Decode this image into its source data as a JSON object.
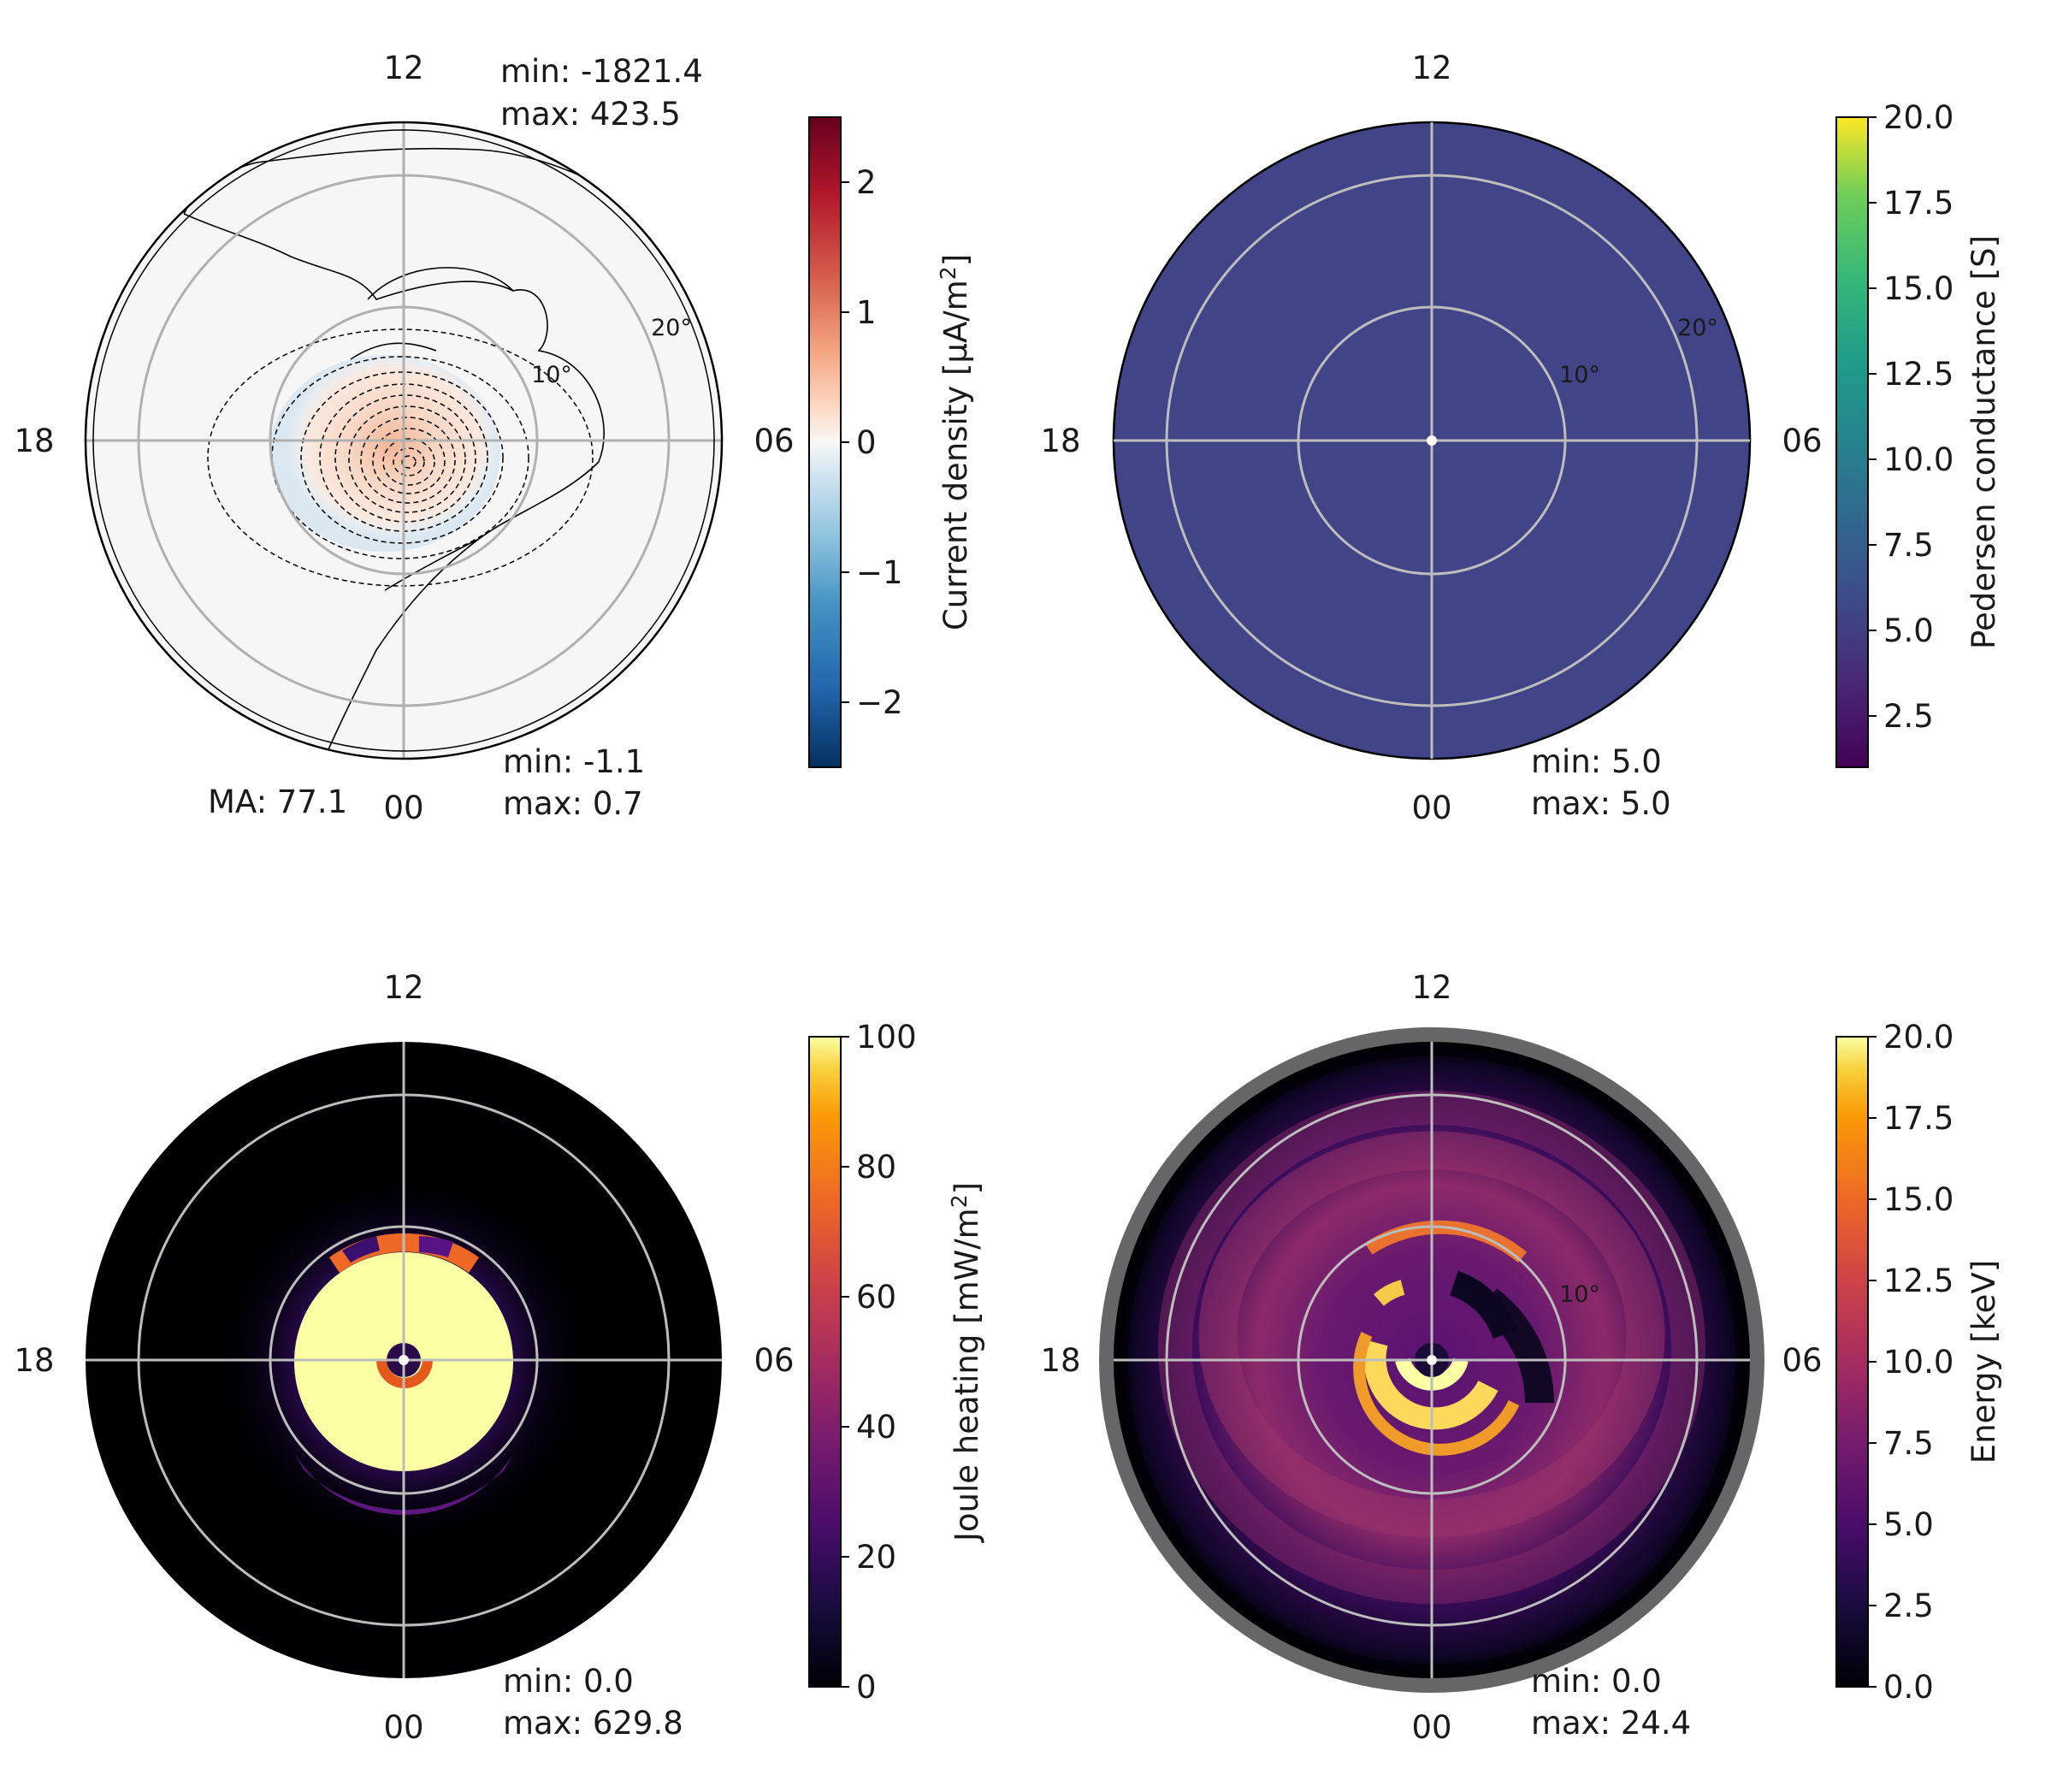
{
  "chart_data": [
    {
      "type": "heatmap",
      "subtype": "polar-contour",
      "panel": "top-left",
      "colorbar_label_main": "Current density [μA/m",
      "colorbar_label_sup": "2",
      "colorbar_label_end": "]",
      "colormap": "RdBu_r",
      "vmin": -2.5,
      "vmax": 2.5,
      "colorbar_ticks": [
        -2,
        -1,
        0,
        1,
        2
      ],
      "colorbar_tick_labels": [
        "−2",
        "−1",
        "0",
        "1",
        "2"
      ],
      "mlt_labels": {
        "top": "12",
        "bottom": "00",
        "left": "18",
        "right": "06"
      },
      "colat_rings": [
        10,
        20
      ],
      "ring_labels": [
        "10°",
        "20°"
      ],
      "stats_top": {
        "min": "min: -1821.4",
        "max": "max: 423.5"
      },
      "stats_bottom": {
        "min": "min: -1.1",
        "max": "max: 0.7"
      },
      "extra_label": "MA: 77.1",
      "field_peak": 0.7,
      "field_trough": -1.1
    },
    {
      "type": "heatmap",
      "subtype": "polar-map",
      "panel": "top-right",
      "colorbar_label_main": "Pedersen conductance [S]",
      "colorbar_label_sup": "",
      "colorbar_label_end": "",
      "colormap": "viridis",
      "vmin": 1.0,
      "vmax": 20.0,
      "colorbar_ticks": [
        2.5,
        5.0,
        7.5,
        10.0,
        12.5,
        15.0,
        17.5,
        20.0
      ],
      "colorbar_tick_labels": [
        "2.5",
        "5.0",
        "7.5",
        "10.0",
        "12.5",
        "15.0",
        "17.5",
        "20.0"
      ],
      "mlt_labels": {
        "top": "12",
        "bottom": "00",
        "left": "18",
        "right": "06"
      },
      "colat_rings": [
        10,
        20
      ],
      "ring_labels": [
        "10°",
        "20°"
      ],
      "stats_bottom": {
        "min": "min: 5.0",
        "max": "max: 5.0"
      },
      "uniform_value": 5.0
    },
    {
      "type": "heatmap",
      "subtype": "polar-map",
      "panel": "bottom-left",
      "colorbar_label_main": "Joule heating [mW/m",
      "colorbar_label_sup": "2",
      "colorbar_label_end": "]",
      "colormap": "inferno",
      "vmin": 0,
      "vmax": 100,
      "colorbar_ticks": [
        0,
        20,
        40,
        60,
        80,
        100
      ],
      "colorbar_tick_labels": [
        "0",
        "20",
        "40",
        "60",
        "80",
        "100"
      ],
      "mlt_labels": {
        "top": "12",
        "bottom": "00",
        "left": "18",
        "right": "06"
      },
      "colat_rings": [
        10,
        20
      ],
      "ring_labels": [],
      "stats_bottom": {
        "min": "min: 0.0",
        "max": "max: 629.8"
      }
    },
    {
      "type": "heatmap",
      "subtype": "polar-map",
      "panel": "bottom-right",
      "colorbar_label_main": "Energy [keV]",
      "colorbar_label_sup": "",
      "colorbar_label_end": "",
      "colormap": "inferno",
      "vmin": 0.0,
      "vmax": 20.0,
      "colorbar_ticks": [
        0.0,
        2.5,
        5.0,
        7.5,
        10.0,
        12.5,
        15.0,
        17.5,
        20.0
      ],
      "colorbar_tick_labels": [
        "0.0",
        "2.5",
        "5.0",
        "7.5",
        "10.0",
        "12.5",
        "15.0",
        "17.5",
        "20.0"
      ],
      "mlt_labels": {
        "top": "12",
        "bottom": "00",
        "left": "18",
        "right": "06"
      },
      "colat_rings": [
        10,
        20
      ],
      "ring_labels": [
        "10°"
      ],
      "stats_bottom": {
        "min": "min: 0.0",
        "max": "max: 24.4"
      }
    }
  ]
}
